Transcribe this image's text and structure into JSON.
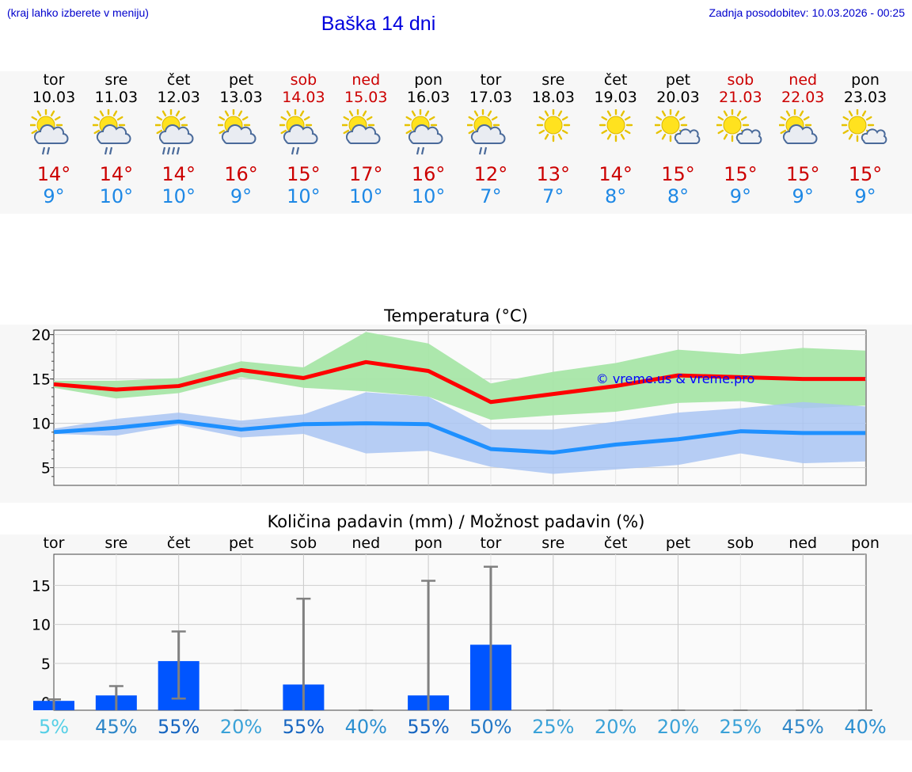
{
  "header": {
    "menu_note": "(kraj lahko izberete v meniju)",
    "title": "Baška 14 dni",
    "updated": "Zadnja posodobitev: 10.03.2026 - 00:25"
  },
  "days": [
    {
      "name": "tor",
      "date": "10.03",
      "weekend": false,
      "icon": "sun-cloud-rain-icon",
      "max": "14°",
      "min": "9°"
    },
    {
      "name": "sre",
      "date": "11.03",
      "weekend": false,
      "icon": "sun-cloud-rain-icon",
      "max": "14°",
      "min": "10°"
    },
    {
      "name": "čet",
      "date": "12.03",
      "weekend": false,
      "icon": "sun-cloud-heavy-rain-icon",
      "max": "14°",
      "min": "10°"
    },
    {
      "name": "pet",
      "date": "13.03",
      "weekend": false,
      "icon": "sun-cloud-icon",
      "max": "16°",
      "min": "9°"
    },
    {
      "name": "sob",
      "date": "14.03",
      "weekend": true,
      "icon": "sun-cloud-rain-icon",
      "max": "15°",
      "min": "10°"
    },
    {
      "name": "ned",
      "date": "15.03",
      "weekend": true,
      "icon": "sun-cloud-icon",
      "max": "17°",
      "min": "10°"
    },
    {
      "name": "pon",
      "date": "16.03",
      "weekend": false,
      "icon": "sun-cloud-rain-icon",
      "max": "16°",
      "min": "10°"
    },
    {
      "name": "tor",
      "date": "17.03",
      "weekend": false,
      "icon": "sun-cloud-rain-icon",
      "max": "12°",
      "min": "7°"
    },
    {
      "name": "sre",
      "date": "18.03",
      "weekend": false,
      "icon": "sun-icon",
      "max": "13°",
      "min": "7°"
    },
    {
      "name": "čet",
      "date": "19.03",
      "weekend": false,
      "icon": "sun-icon",
      "max": "14°",
      "min": "8°"
    },
    {
      "name": "pet",
      "date": "20.03",
      "weekend": false,
      "icon": "sun-small-cloud-icon",
      "max": "15°",
      "min": "8°"
    },
    {
      "name": "sob",
      "date": "21.03",
      "weekend": true,
      "icon": "sun-small-cloud-icon",
      "max": "15°",
      "min": "9°"
    },
    {
      "name": "ned",
      "date": "22.03",
      "weekend": true,
      "icon": "sun-cloud-icon",
      "max": "15°",
      "min": "9°"
    },
    {
      "name": "pon",
      "date": "23.03",
      "weekend": false,
      "icon": "sun-small-cloud-icon",
      "max": "15°",
      "min": "9°"
    }
  ],
  "colors": {
    "max_line": "#ff0000",
    "min_line": "#1e90ff",
    "max_band": "#a8e6a8",
    "min_band": "#a9c4f2",
    "bar": "#0055ff",
    "whisker": "#808080",
    "weekend": "#cc0000",
    "watermark": "#0000ff"
  },
  "chart_data": [
    {
      "type": "line",
      "title": "Temperatura (°C)",
      "watermark": "© vreme.us & vreme.pro",
      "x": [
        0,
        1,
        2,
        3,
        4,
        5,
        6,
        7,
        8,
        9,
        10,
        11,
        12,
        13
      ],
      "ylim": [
        3,
        20.5
      ],
      "yticks": [
        "5",
        "10",
        "15",
        "20"
      ],
      "series": [
        {
          "name": "max",
          "values": [
            14.4,
            13.8,
            14.2,
            16.0,
            15.1,
            16.9,
            15.9,
            12.4,
            13.3,
            14.2,
            15.4,
            15.2,
            15.0,
            15.0
          ],
          "band_high": [
            14.8,
            14.8,
            15.1,
            17.0,
            16.3,
            20.3,
            19.0,
            14.5,
            15.8,
            16.8,
            18.3,
            17.8,
            18.5,
            18.2
          ],
          "band_low": [
            14.0,
            12.8,
            13.4,
            15.2,
            14.0,
            13.6,
            13.0,
            10.4,
            10.9,
            11.3,
            12.3,
            12.5,
            11.7,
            12.0
          ]
        },
        {
          "name": "min",
          "values": [
            9.0,
            9.5,
            10.2,
            9.3,
            9.9,
            10.0,
            9.9,
            7.1,
            6.7,
            7.6,
            8.2,
            9.1,
            8.9,
            8.9
          ],
          "band_high": [
            9.4,
            10.5,
            11.2,
            10.3,
            11.0,
            13.5,
            13.0,
            9.3,
            9.3,
            10.2,
            11.2,
            11.7,
            12.4,
            11.9
          ],
          "band_low": [
            8.8,
            8.6,
            9.8,
            8.4,
            8.8,
            6.6,
            6.9,
            5.1,
            4.3,
            4.8,
            5.3,
            6.6,
            5.5,
            5.7
          ]
        }
      ]
    },
    {
      "type": "bar",
      "title": "Količina padavin (mm) / Možnost padavin (%)",
      "categories": [
        "tor",
        "sre",
        "čet",
        "pet",
        "sob",
        "ned",
        "pon",
        "tor",
        "sre",
        "čet",
        "pet",
        "sob",
        "ned",
        "pon"
      ],
      "ylim": [
        -1,
        19
      ],
      "yticks": [
        "0",
        "5",
        "10",
        "15"
      ],
      "values": [
        0.2,
        0.9,
        5.3,
        0,
        2.3,
        0,
        0.9,
        7.4,
        0,
        0,
        0,
        0,
        0,
        0
      ],
      "err_low": [
        0,
        0,
        0.5,
        0,
        0,
        0,
        0,
        0,
        0,
        0,
        0,
        0,
        0,
        0
      ],
      "err_high": [
        0.4,
        2.1,
        9.1,
        0,
        13.3,
        0,
        15.6,
        17.4,
        0,
        0,
        0,
        0,
        0,
        0
      ],
      "probability": [
        "5%",
        "45%",
        "55%",
        "20%",
        "55%",
        "40%",
        "55%",
        "50%",
        "25%",
        "20%",
        "20%",
        "25%",
        "45%",
        "40%"
      ],
      "probability_colors": [
        "#55cfe6",
        "#2d86c8",
        "#1565c0",
        "#3aa2d8",
        "#1565c0",
        "#2b8fd0",
        "#1565c0",
        "#2378c6",
        "#3aa2d8",
        "#3aa2d8",
        "#3aa2d8",
        "#3aa2d8",
        "#2d86c8",
        "#2b8fd0"
      ]
    }
  ]
}
